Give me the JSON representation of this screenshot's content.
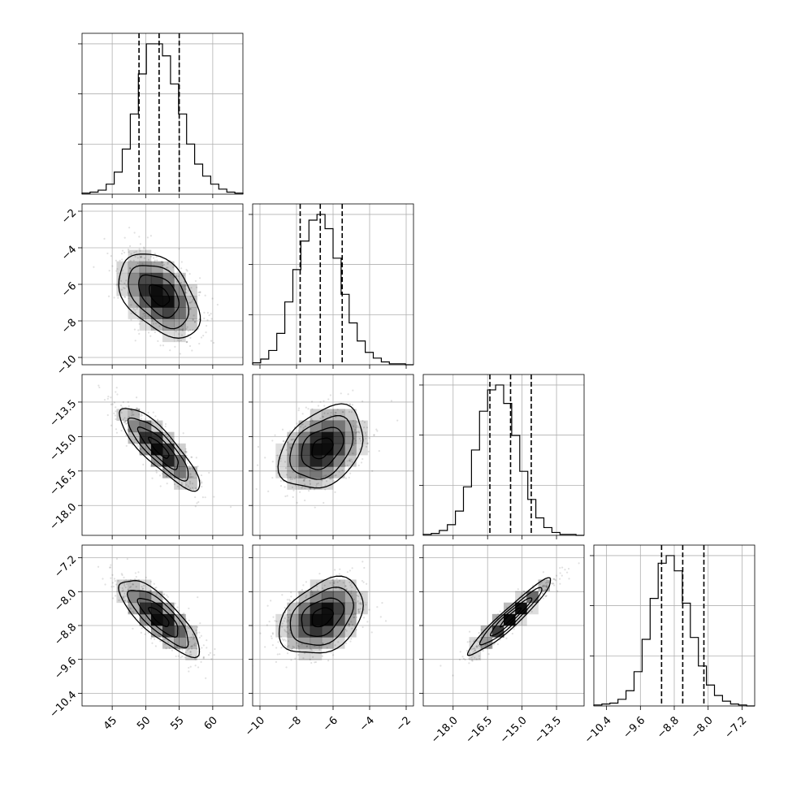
{
  "chart_data": {
    "type": "corner",
    "parameters": [
      {
        "ticks": [
          45,
          50,
          55,
          60
        ],
        "tick_labels": [
          "45",
          "50",
          "55",
          "60"
        ],
        "range": [
          40.5,
          64.5
        ],
        "mean": 52.0,
        "sd": 3.0,
        "quantiles": [
          49.0,
          52.0,
          55.0
        ]
      },
      {
        "ticks": [
          -10,
          -8,
          -6,
          -4,
          -2
        ],
        "tick_labels": [
          "−10",
          "−8",
          "−6",
          "−4",
          "−2"
        ],
        "range": [
          -10.4,
          -1.6
        ],
        "mean": -6.6,
        "sd": 1.15,
        "quantiles": [
          -7.8,
          -6.7,
          -5.5
        ]
      },
      {
        "ticks": [
          -18.0,
          -16.5,
          -15.0,
          -13.5
        ],
        "tick_labels": [
          "−18.0",
          "−16.5",
          "−15.0",
          "−13.5"
        ],
        "range": [
          -19.3,
          -12.3
        ],
        "mean": -15.5,
        "sd": 0.9,
        "quantiles": [
          -16.4,
          -15.5,
          -14.6
        ]
      },
      {
        "ticks": [
          -10.4,
          -9.6,
          -8.8,
          -8.0,
          -7.2
        ],
        "tick_labels": [
          "−10.4",
          "−9.6",
          "−8.8",
          "−8.0",
          "−7.2"
        ],
        "range": [
          -10.7,
          -6.9
        ],
        "mean": -8.6,
        "sd": 0.45,
        "quantiles": [
          -9.1,
          -8.6,
          -8.1
        ]
      }
    ],
    "correlations": [
      {
        "i": 1,
        "j": 0,
        "rho": -0.45
      },
      {
        "i": 2,
        "j": 0,
        "rho": -0.85
      },
      {
        "i": 2,
        "j": 1,
        "rho": 0.35
      },
      {
        "i": 3,
        "j": 0,
        "rho": -0.8
      },
      {
        "i": 3,
        "j": 1,
        "rho": 0.35
      },
      {
        "i": 3,
        "j": 2,
        "rho": 0.95
      }
    ],
    "histogram_counts": [
      [
        1,
        2,
        4,
        10,
        22,
        45,
        80,
        120,
        150,
        150,
        138,
        110,
        80,
        50,
        30,
        18,
        10,
        5,
        2,
        1
      ],
      [
        2,
        6,
        15,
        33,
        66,
        100,
        130,
        152,
        158,
        143,
        112,
        74,
        44,
        25,
        13,
        7,
        3,
        1,
        1,
        0
      ],
      [
        1,
        2,
        5,
        11,
        25,
        50,
        88,
        128,
        150,
        155,
        136,
        103,
        66,
        37,
        18,
        8,
        3,
        1,
        1,
        0
      ],
      [
        1,
        2,
        3,
        7,
        16,
        36,
        70,
        113,
        150,
        158,
        142,
        108,
        72,
        42,
        22,
        11,
        5,
        2,
        1,
        0
      ]
    ],
    "bins": 20,
    "grid": true,
    "colors": {
      "line": "#000000",
      "grid": "#b0b0b0",
      "scatter": "#000000",
      "density": "#000000"
    }
  }
}
